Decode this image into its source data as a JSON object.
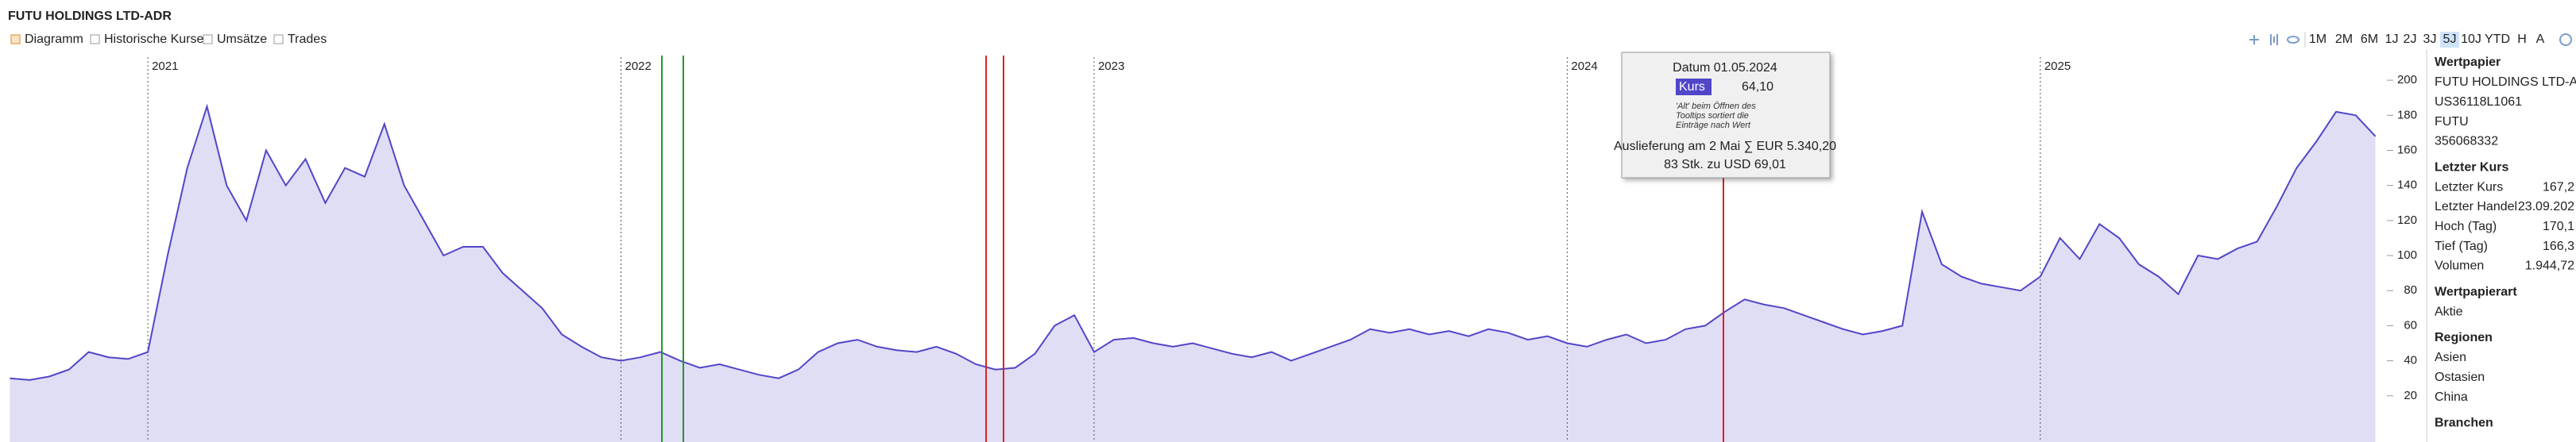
{
  "header": {
    "title": "FUTU HOLDINGS LTD-ADR",
    "tabs": [
      "Diagramm",
      "Historische Kurse",
      "Umsätze",
      "Trades"
    ],
    "ranges": [
      "1M",
      "2M",
      "6M",
      "1J",
      "2J",
      "3J",
      "5J",
      "10J",
      "YTD",
      "H",
      "A"
    ]
  },
  "chart_data": {
    "type": "area",
    "color": "#5146c8",
    "categories": [
      null,
      null,
      null,
      null,
      null,
      null,
      null,
      "2021",
      null,
      null,
      null,
      null,
      null,
      null,
      null,
      null,
      null,
      null,
      null,
      null,
      null,
      null,
      null,
      null,
      null,
      null,
      null,
      null,
      null,
      null,
      null,
      "2022",
      null,
      null,
      null,
      null,
      null,
      null,
      null,
      null,
      null,
      null,
      null,
      null,
      null,
      null,
      null,
      null,
      null,
      null,
      null,
      null,
      null,
      null,
      null,
      "2023",
      null,
      null,
      null,
      null,
      null,
      null,
      null,
      null,
      null,
      null,
      null,
      null,
      null,
      null,
      null,
      null,
      null,
      null,
      null,
      null,
      null,
      null,
      null,
      "2024",
      null,
      null,
      null,
      null,
      null,
      null,
      null,
      null,
      null,
      null,
      null,
      null,
      null,
      null,
      null,
      null,
      null,
      null,
      null,
      null,
      null,
      null,
      null,
      "2025",
      null,
      null,
      null,
      null,
      null,
      null,
      null,
      null,
      null,
      null,
      null,
      null,
      null,
      null,
      null,
      null,
      null
    ],
    "values": [
      30,
      29,
      31,
      35,
      45,
      42,
      41,
      45,
      100,
      150,
      185,
      140,
      120,
      160,
      140,
      155,
      130,
      150,
      145,
      175,
      140,
      120,
      100,
      105,
      105,
      90,
      80,
      70,
      55,
      48,
      42,
      40,
      42,
      45,
      40,
      36,
      38,
      35,
      32,
      30,
      35,
      45,
      50,
      52,
      48,
      46,
      45,
      48,
      44,
      38,
      35,
      36,
      44,
      60,
      66,
      45,
      52,
      53,
      50,
      48,
      50,
      47,
      44,
      42,
      45,
      40,
      44,
      48,
      52,
      58,
      56,
      58,
      55,
      57,
      54,
      58,
      56,
      52,
      54,
      50,
      48,
      52,
      55,
      50,
      52,
      58,
      60,
      68,
      75,
      72,
      70,
      66,
      62,
      58,
      55,
      57,
      60,
      125,
      95,
      88,
      84,
      82,
      80,
      88,
      110,
      98,
      118,
      110,
      95,
      88,
      78,
      100,
      98,
      104,
      108,
      128,
      150,
      165,
      182,
      180,
      168
    ],
    "ylim": [
      0,
      210
    ],
    "yticks": [
      20,
      40,
      60,
      80,
      100,
      120,
      140,
      160,
      180,
      200
    ]
  },
  "tooltip": {
    "date": "Datum 01.05.2024",
    "series": "Kurs",
    "value": "64,10",
    "note": [
      "'Alt' beim Öffnen des",
      "Tooltips sortiert die",
      "Einträge nach Wert"
    ],
    "delivery": "Auslieferung am 2 Mai ∑ EUR 5.340,20",
    "shares": "83 Stk. zu USD 69,01"
  },
  "sidebar": [
    {
      "heading": "Wertpapier",
      "items": [
        [
          "FUTU HOLDINGS LTD-AD"
        ],
        [
          "US36118L1061"
        ],
        [
          "FUTU"
        ],
        [
          "356068332"
        ]
      ]
    },
    {
      "heading": "Letzter Kurs",
      "items": [
        [
          "Letzter Kurs",
          "167,2"
        ],
        [
          "Letzter Handel",
          "23.09.202"
        ],
        [
          "Hoch (Tag)",
          "170,1"
        ],
        [
          "Tief (Tag)",
          "166,3"
        ],
        [
          "Volumen",
          "1.944,72"
        ]
      ]
    },
    {
      "heading": "Wertpapierart",
      "items": [
        [
          "Aktie"
        ]
      ]
    },
    {
      "heading": "Regionen",
      "items": [
        [
          "Asien"
        ],
        [
          "Ostasien"
        ],
        [
          "China"
        ]
      ]
    },
    {
      "heading": "Branchen",
      "items": []
    }
  ]
}
